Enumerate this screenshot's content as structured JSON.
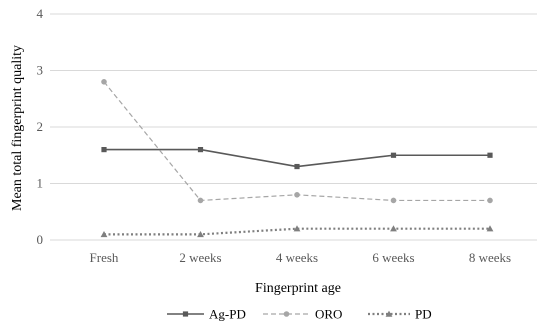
{
  "chart_data": {
    "type": "line",
    "title": "",
    "xlabel": "Fingerprint age",
    "ylabel": "Mean total fingerprint quality",
    "categories": [
      "Fresh",
      "2 weeks",
      "4 weeks",
      "6 weeks",
      "8 weeks"
    ],
    "ylim": [
      0,
      4
    ],
    "yticks": [
      0,
      1,
      2,
      3,
      4
    ],
    "grid": "horizontal",
    "legend": "bottom",
    "series": [
      {
        "name": "Ag-PD",
        "values": [
          1.6,
          1.6,
          1.3,
          1.5,
          1.5
        ],
        "color": "#595959",
        "line_style": "solid",
        "marker": "square"
      },
      {
        "name": "ORO",
        "values": [
          2.8,
          0.7,
          0.8,
          0.7,
          0.7
        ],
        "color": "#a6a6a6",
        "line_style": "dashed",
        "marker": "circle"
      },
      {
        "name": "PD",
        "values": [
          0.1,
          0.1,
          0.2,
          0.2,
          0.2
        ],
        "color": "#7f7f7f",
        "line_style": "dotted",
        "marker": "triangle"
      }
    ]
  }
}
